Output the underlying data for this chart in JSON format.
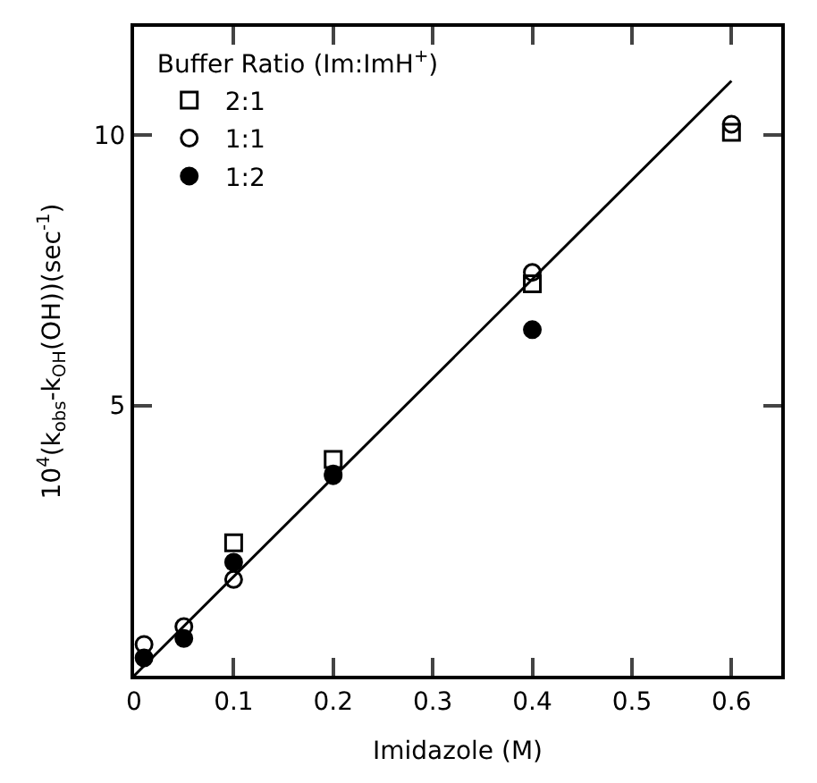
{
  "chart_data": {
    "type": "scatter",
    "xlabel": "Imidazole (M)",
    "ylabel": "10$^{4}$(k$_{obs}$-k$_{OH}$(OH))(sec$^{-1}$)",
    "legend_title": "Buffer Ratio (Im:ImH$^{+}$)",
    "xlim": [
      0,
      0.65
    ],
    "xticks": [
      0,
      0.1,
      0.2,
      0.3,
      0.4,
      0.5,
      0.6
    ],
    "ylim": [
      0,
      12
    ],
    "yticks": [
      5,
      10
    ],
    "legend": "top left",
    "series": [
      {
        "name": "2:1",
        "color": "#000000",
        "marker": "square-open",
        "x": [
          0.1,
          0.2,
          0.4,
          0.6
        ],
        "values": [
          2.46,
          4.0,
          7.25,
          10.05
        ]
      },
      {
        "name": "1:1",
        "color": "#000000",
        "marker": "circle-open",
        "x": [
          0.01,
          0.05,
          0.1,
          0.2,
          0.4,
          0.6
        ],
        "values": [
          0.58,
          0.91,
          1.78,
          3.7,
          7.46,
          10.2
        ]
      },
      {
        "name": "1:2",
        "color": "#000000",
        "marker": "circle",
        "x": [
          0.01,
          0.05,
          0.1,
          0.2,
          0.4
        ],
        "values": [
          0.33,
          0.69,
          2.1,
          3.73,
          6.4
        ]
      },
      {
        "type": "line",
        "color": "#000000",
        "marker": "none",
        "line_style": "solid",
        "x": [
          0,
          0.6
        ],
        "values": [
          0,
          11.0
        ]
      }
    ]
  }
}
